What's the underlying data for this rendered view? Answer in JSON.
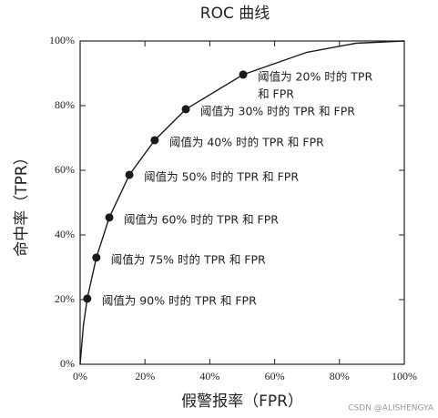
{
  "chart_data": {
    "type": "line",
    "title": "ROC 曲线",
    "x_label": "假警报率（FPR）",
    "y_label": "命中率（TPR）",
    "watermark": "CSDN @ALISHENGYA",
    "color": "#1a1a1a",
    "x": [
      0,
      1,
      2.2,
      5,
      9,
      15.2,
      23,
      32.6,
      50.3,
      70,
      85,
      100
    ],
    "values": [
      0,
      12,
      20.3,
      33,
      45.4,
      58.6,
      69.3,
      78.9,
      89.6,
      96.5,
      99.3,
      100
    ],
    "points": {
      "x": [
        2.2,
        5,
        9,
        15.2,
        23,
        32.6,
        50.3
      ],
      "values": [
        20.3,
        33,
        45.4,
        58.6,
        69.3,
        78.9,
        89.6
      ],
      "labels": [
        [
          "阈值为 90% 时的 TPR 和 FPR"
        ],
        [
          "阈值为 75% 时的 TPR 和 FPR"
        ],
        [
          "阈值为 60% 时的 TPR 和 FPR"
        ],
        [
          "阈值为 50% 时的 TPR 和 FPR"
        ],
        [
          "阈值为 40% 时的 TPR 和 FPR"
        ],
        [
          "阈值为 30% 时的 TPR 和 FPR"
        ],
        [
          "阈值为 20% 时的 TPR",
          "和 FPR"
        ]
      ]
    },
    "xlim": [
      0,
      100
    ],
    "ylim": [
      0,
      100
    ],
    "xticks": [
      {
        "value": 0,
        "label": "0%"
      },
      {
        "value": 20,
        "label": "20%"
      },
      {
        "value": 40,
        "label": "40%"
      },
      {
        "value": 60,
        "label": "60%"
      },
      {
        "value": 80,
        "label": "80%"
      },
      {
        "value": 100,
        "label": "100%"
      }
    ],
    "yticks": [
      {
        "value": 0,
        "label": "0%"
      },
      {
        "value": 20,
        "label": "20%"
      },
      {
        "value": 40,
        "label": "40%"
      },
      {
        "value": 60,
        "label": "60%"
      },
      {
        "value": 80,
        "label": "80%"
      },
      {
        "value": 100,
        "label": "100%"
      }
    ],
    "grid": false
  }
}
